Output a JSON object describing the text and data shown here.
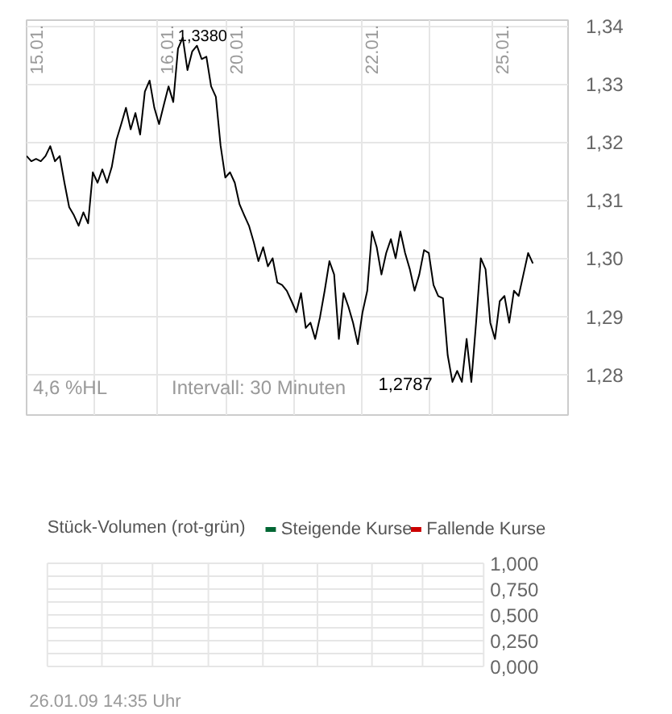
{
  "chart_data": [
    {
      "type": "line",
      "ylim": [
        1.273,
        1.341
      ],
      "categories": [
        null,
        null,
        null,
        null,
        null,
        null,
        null,
        null,
        null,
        null,
        null,
        null,
        null,
        null,
        null,
        null,
        null,
        null,
        null,
        null,
        null,
        null,
        null,
        null,
        null,
        null,
        null,
        null,
        null,
        null,
        null,
        null,
        null,
        null,
        null,
        null,
        null,
        null,
        null,
        null,
        null,
        null,
        null,
        null,
        null,
        null,
        null,
        null,
        null,
        null,
        null,
        null,
        null,
        null,
        null,
        null,
        null,
        null,
        null,
        null,
        null,
        null,
        null,
        null,
        null,
        null,
        null,
        null,
        null,
        null,
        null,
        null,
        null,
        null,
        null,
        null,
        null,
        null,
        null,
        null,
        null,
        null,
        null,
        null,
        null,
        null,
        null,
        null,
        null,
        null,
        null,
        null,
        null,
        null,
        null,
        null,
        null,
        null,
        null,
        null,
        null,
        null,
        null,
        null,
        null,
        null,
        null,
        null
      ],
      "yticks": [
        {
          "value": 1.28,
          "label": "1,28"
        },
        {
          "value": 1.29,
          "label": "1,29"
        },
        {
          "value": 1.3,
          "label": "1,30"
        },
        {
          "value": 1.31,
          "label": "1,31"
        },
        {
          "value": 1.32,
          "label": "1,32"
        },
        {
          "value": 1.33,
          "label": "1,33"
        },
        {
          "value": 1.34,
          "label": "1,34"
        }
      ],
      "grid": true,
      "marker": "none",
      "line_style": "solid",
      "series": [
        {
          "color": "#000000",
          "values": [
            1.3176,
            1.3167,
            1.3171,
            1.3167,
            1.3176,
            1.3193,
            1.3167,
            1.3176,
            1.313,
            1.3088,
            1.3074,
            1.3056,
            1.3079,
            1.306,
            1.3148,
            1.313,
            1.3153,
            1.313,
            1.3157,
            1.3204,
            1.3231,
            1.3259,
            1.3222,
            1.325,
            1.3213,
            1.3287,
            1.3306,
            1.3259,
            1.3231,
            1.3264,
            1.3296,
            1.3269,
            1.3361,
            1.338,
            1.3324,
            1.3356,
            1.3366,
            1.3343,
            1.3347,
            1.3296,
            1.3278,
            1.3194,
            1.3139,
            1.3148,
            1.313,
            1.3093,
            1.3074,
            1.3056,
            1.3028,
            1.2995,
            1.3019,
            1.2986,
            1.3,
            1.2958,
            1.2954,
            1.2944,
            1.2926,
            1.2907,
            1.294,
            1.288,
            1.2889,
            1.2861,
            1.2898,
            1.2944,
            1.2995,
            1.2972,
            1.2861,
            1.294,
            1.2917,
            1.2889,
            1.2852,
            1.2907,
            1.2944,
            1.3046,
            1.3019,
            1.2972,
            1.3009,
            1.3033,
            1.3,
            1.3046,
            1.3009,
            1.2981,
            1.2944,
            1.2972,
            1.3014,
            1.3009,
            1.2954,
            1.2935,
            1.2931,
            1.2833,
            1.2787,
            1.2806,
            1.2787,
            1.2861,
            1.2787,
            1.2889,
            1.3,
            1.2981,
            1.2889,
            1.2861,
            1.2926,
            1.2935,
            1.2889,
            1.2944,
            1.2935,
            1.2972,
            1.3009,
            1.2991
          ]
        }
      ],
      "annotations": [
        "1,3380",
        "1,2787",
        "15.01.",
        "16.01.",
        "20.01.",
        "22.01.",
        "25.01.",
        "4,6 %HL",
        "Intervall: 30 Minuten"
      ]
    },
    {
      "type": "bar",
      "title": "Stück-Volumen (rot-grün)",
      "grid": true,
      "legend": "top right",
      "tick_labels": "y",
      "ylim": [
        0,
        1
      ],
      "yticks": [
        {
          "value": 0,
          "label": "0,000"
        },
        {
          "value": 0.125,
          "label": null
        },
        {
          "value": 0.25,
          "label": "0,250"
        },
        {
          "value": 0.375,
          "label": null
        },
        {
          "value": 0.5,
          "label": "0,500"
        },
        {
          "value": 0.625,
          "label": null
        },
        {
          "value": 0.75,
          "label": "0,750"
        },
        {
          "value": 0.875,
          "label": null
        },
        {
          "value": 1,
          "label": "1,000"
        }
      ],
      "series": [
        {
          "name": "Steigende Kurse",
          "color": "#006633"
        },
        {
          "name": "Fallende Kurse",
          "color": "#cc0000"
        }
      ],
      "annotations": [
        "26.01.09 14:35 Uhr"
      ]
    }
  ]
}
